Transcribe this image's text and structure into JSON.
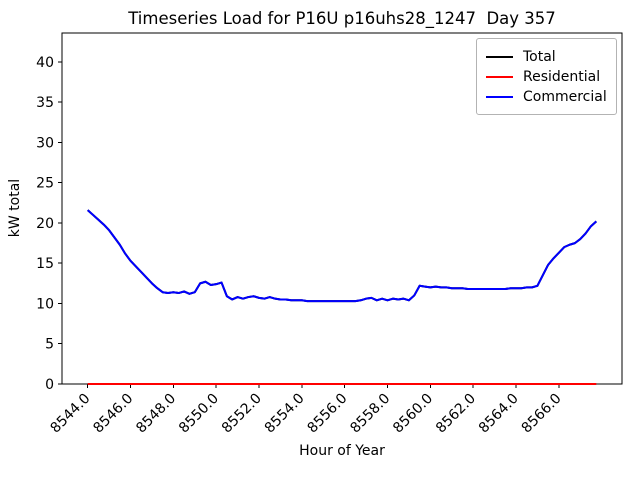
{
  "chart_data": {
    "type": "line",
    "title": "Timeseries Load for P16U p16uhs28_1247  Day 357",
    "xlabel": "Hour of Year",
    "ylabel": "kW total",
    "grid": false,
    "legend_position": "upper right",
    "xlim": [
      8542.8,
      8568.95
    ],
    "ylim": [
      0,
      43.6
    ],
    "x_tick_values": [
      8544,
      8546,
      8548,
      8550,
      8552,
      8554,
      8556,
      8558,
      8560,
      8562,
      8564,
      8566
    ],
    "x_tick_labels": [
      "8544.0",
      "8546.0",
      "8548.0",
      "8550.0",
      "8552.0",
      "8554.0",
      "8556.0",
      "8558.0",
      "8560.0",
      "8562.0",
      "8564.0",
      "8566.0"
    ],
    "y_tick_values": [
      0,
      5,
      10,
      15,
      20,
      25,
      30,
      35,
      40
    ],
    "y_tick_labels": [
      "0",
      "5",
      "10",
      "15",
      "20",
      "25",
      "30",
      "35",
      "40"
    ],
    "x": [
      8544.0,
      8544.25,
      8544.5,
      8544.75,
      8545.0,
      8545.25,
      8545.5,
      8545.75,
      8546.0,
      8546.25,
      8546.5,
      8546.75,
      8547.0,
      8547.25,
      8547.5,
      8547.75,
      8548.0,
      8548.25,
      8548.5,
      8548.75,
      8549.0,
      8549.25,
      8549.5,
      8549.75,
      8550.0,
      8550.25,
      8550.5,
      8550.75,
      8551.0,
      8551.25,
      8551.5,
      8551.75,
      8552.0,
      8552.25,
      8552.5,
      8552.75,
      8553.0,
      8553.25,
      8553.5,
      8553.75,
      8554.0,
      8554.25,
      8554.5,
      8554.75,
      8555.0,
      8555.25,
      8555.5,
      8555.75,
      8556.0,
      8556.25,
      8556.5,
      8556.75,
      8557.0,
      8557.25,
      8557.5,
      8557.75,
      8558.0,
      8558.25,
      8558.5,
      8558.75,
      8559.0,
      8559.25,
      8559.5,
      8559.75,
      8560.0,
      8560.25,
      8560.5,
      8560.75,
      8561.0,
      8561.25,
      8561.5,
      8561.75,
      8562.0,
      8562.25,
      8562.5,
      8562.75,
      8563.0,
      8563.25,
      8563.5,
      8563.75,
      8564.0,
      8564.25,
      8564.5,
      8564.75,
      8565.0,
      8565.25,
      8565.5,
      8565.75,
      8566.0,
      8566.25,
      8566.5,
      8566.75,
      8567.0,
      8567.25,
      8567.5,
      8567.75
    ],
    "series": [
      {
        "name": "Total",
        "color": "#000000",
        "note": "coincides with Commercial (Residential is zero), hidden beneath the blue line",
        "values": [
          21.6,
          21.0,
          20.4,
          19.8,
          19.1,
          18.2,
          17.3,
          16.2,
          15.3,
          14.6,
          13.9,
          13.2,
          12.5,
          11.9,
          11.4,
          11.3,
          11.4,
          11.3,
          11.5,
          11.2,
          11.4,
          12.5,
          12.7,
          12.3,
          12.4,
          12.6,
          10.9,
          10.5,
          10.8,
          10.6,
          10.8,
          10.9,
          10.7,
          10.6,
          10.8,
          10.6,
          10.5,
          10.5,
          10.4,
          10.4,
          10.4,
          10.3,
          10.3,
          10.3,
          10.3,
          10.3,
          10.3,
          10.3,
          10.3,
          10.3,
          10.3,
          10.4,
          10.6,
          10.7,
          10.4,
          10.6,
          10.4,
          10.6,
          10.5,
          10.6,
          10.4,
          11.0,
          12.2,
          12.1,
          12.0,
          12.1,
          12.0,
          12.0,
          11.9,
          11.9,
          11.9,
          11.8,
          11.8,
          11.8,
          11.8,
          11.8,
          11.8,
          11.8,
          11.8,
          11.9,
          11.9,
          11.9,
          12.0,
          12.0,
          12.2,
          13.5,
          14.8,
          15.6,
          16.3,
          17.0,
          17.3,
          17.5,
          18.0,
          18.7,
          19.6,
          20.2
        ]
      },
      {
        "name": "Residential",
        "color": "#ff0000",
        "values": [
          0,
          0,
          0,
          0,
          0,
          0,
          0,
          0,
          0,
          0,
          0,
          0,
          0,
          0,
          0,
          0,
          0,
          0,
          0,
          0,
          0,
          0,
          0,
          0,
          0,
          0,
          0,
          0,
          0,
          0,
          0,
          0,
          0,
          0,
          0,
          0,
          0,
          0,
          0,
          0,
          0,
          0,
          0,
          0,
          0,
          0,
          0,
          0,
          0,
          0,
          0,
          0,
          0,
          0,
          0,
          0,
          0,
          0,
          0,
          0,
          0,
          0,
          0,
          0,
          0,
          0,
          0,
          0,
          0,
          0,
          0,
          0,
          0,
          0,
          0,
          0,
          0,
          0,
          0,
          0,
          0,
          0,
          0,
          0,
          0,
          0,
          0,
          0,
          0,
          0,
          0,
          0,
          0,
          0,
          0,
          0
        ]
      },
      {
        "name": "Commercial",
        "color": "#0000ff",
        "values": [
          21.6,
          21.0,
          20.4,
          19.8,
          19.1,
          18.2,
          17.3,
          16.2,
          15.3,
          14.6,
          13.9,
          13.2,
          12.5,
          11.9,
          11.4,
          11.3,
          11.4,
          11.3,
          11.5,
          11.2,
          11.4,
          12.5,
          12.7,
          12.3,
          12.4,
          12.6,
          10.9,
          10.5,
          10.8,
          10.6,
          10.8,
          10.9,
          10.7,
          10.6,
          10.8,
          10.6,
          10.5,
          10.5,
          10.4,
          10.4,
          10.4,
          10.3,
          10.3,
          10.3,
          10.3,
          10.3,
          10.3,
          10.3,
          10.3,
          10.3,
          10.3,
          10.4,
          10.6,
          10.7,
          10.4,
          10.6,
          10.4,
          10.6,
          10.5,
          10.6,
          10.4,
          11.0,
          12.2,
          12.1,
          12.0,
          12.1,
          12.0,
          12.0,
          11.9,
          11.9,
          11.9,
          11.8,
          11.8,
          11.8,
          11.8,
          11.8,
          11.8,
          11.8,
          11.8,
          11.9,
          11.9,
          11.9,
          12.0,
          12.0,
          12.2,
          13.5,
          14.8,
          15.6,
          16.3,
          17.0,
          17.3,
          17.5,
          18.0,
          18.7,
          19.6,
          20.2
        ]
      }
    ]
  },
  "legend": {
    "entries": [
      {
        "label": "Total"
      },
      {
        "label": "Residential"
      },
      {
        "label": "Commercial"
      }
    ]
  }
}
